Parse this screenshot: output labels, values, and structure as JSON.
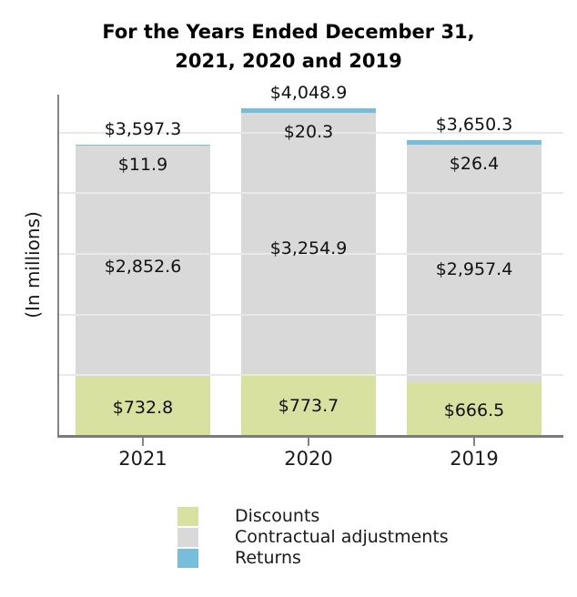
{
  "title": {
    "line1": "For the Years Ended December 31,",
    "line2": "2021, 2020 and 2019"
  },
  "chart_data": {
    "type": "bar",
    "stacked": true,
    "title": "For the Years Ended December 31, 2021, 2020 and 2019",
    "xlabel": "",
    "ylabel": "(In millions)",
    "categories": [
      "2021",
      "2020",
      "2019"
    ],
    "series": [
      {
        "name": "Discounts",
        "color": "#d9e1a1",
        "values": [
          732.8,
          773.7,
          666.5
        ],
        "value_labels": [
          "$732.8",
          "$773.7",
          "$666.5"
        ]
      },
      {
        "name": "Contractual adjustments",
        "color": "#d9d9d9",
        "values": [
          2852.6,
          3254.9,
          2957.4
        ],
        "value_labels": [
          "$2,852.6",
          "$3,254.9",
          "$2,957.4"
        ]
      },
      {
        "name": "Returns",
        "color": "#76bedb",
        "values": [
          11.9,
          20.3,
          26.4
        ],
        "value_labels": [
          "$11.9",
          "$20.3",
          "$26.4"
        ]
      }
    ],
    "totals": [
      3597.3,
      4048.9,
      3650.3
    ],
    "total_labels": [
      "$3,597.3",
      "$4,048.9",
      "$3,650.3"
    ],
    "ylim": [
      0,
      4200
    ],
    "grid": true,
    "gridline_values": [
      750,
      1500,
      2250,
      3000,
      3750
    ],
    "legend_position": "bottom"
  },
  "legend": {
    "items": [
      {
        "label": "Discounts",
        "color": "#d9e1a1"
      },
      {
        "label": "Contractual adjustments",
        "color": "#d9d9d9"
      },
      {
        "label": "Returns",
        "color": "#76bedb"
      }
    ]
  }
}
